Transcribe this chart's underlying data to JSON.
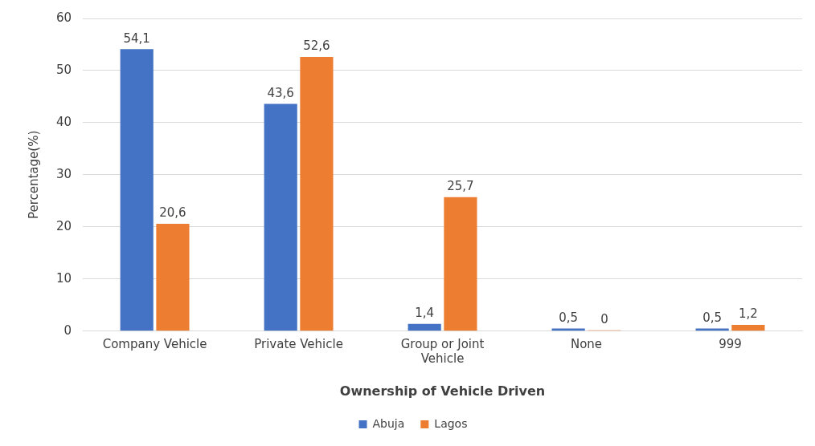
{
  "chart_data": {
    "type": "bar",
    "xlabel": "Ownership of Vehicle Driven",
    "ylabel": "Percentage(%)",
    "categories": [
      "Company Vehicle",
      "Private Vehicle",
      "Group or Joint Vehicle",
      "None",
      "999"
    ],
    "series": [
      {
        "name": "Abuja",
        "color": "#4472c4",
        "values": [
          54.1,
          43.6,
          1.4,
          0.5,
          0.5
        ],
        "value_labels": [
          "54,1",
          "43,6",
          "1,4",
          "0,5",
          "0,5"
        ]
      },
      {
        "name": "Lagos",
        "color": "#ed7d31",
        "values": [
          20.6,
          52.6,
          25.7,
          0,
          1.2
        ],
        "value_labels": [
          "20,6",
          "52,6",
          "25,7",
          "0",
          "1,2"
        ]
      }
    ],
    "ylim": [
      0,
      60
    ],
    "yticks": [
      0,
      10,
      20,
      30,
      40,
      50,
      60
    ],
    "grid": "y",
    "legend": "bottom"
  }
}
